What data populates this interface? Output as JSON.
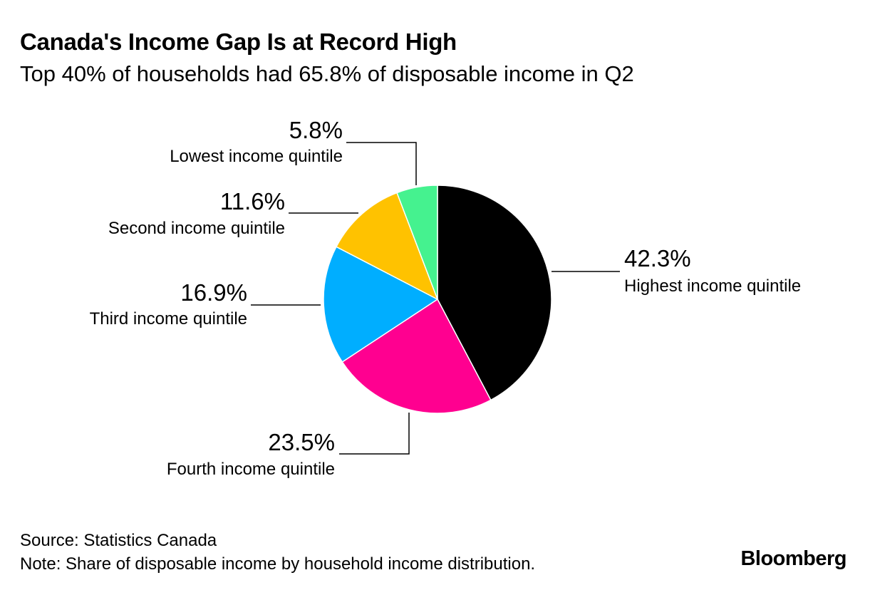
{
  "header": {
    "title": "Canada's Income Gap Is at Record High",
    "subtitle": "Top 40% of households had 65.8% of disposable income in Q2"
  },
  "footer": {
    "source": "Source: Statistics Canada",
    "note": "Note: Share of disposable income by household income distribution.",
    "logo": "Bloomberg"
  },
  "chart_data": {
    "type": "pie",
    "title": "Canada's Income Gap Is at Record High",
    "subtitle": "Top 40% of households had 65.8% of disposable income in Q2",
    "start": "12 o'clock, clockwise",
    "slices": [
      {
        "name": "Highest income quintile",
        "value": 42.3,
        "label": "42.3%",
        "color": "#000000"
      },
      {
        "name": "Fourth income quintile",
        "value": 23.5,
        "label": "23.5%",
        "color": "#FF0090"
      },
      {
        "name": "Third income quintile",
        "value": 16.9,
        "label": "16.9%",
        "color": "#00AEFF"
      },
      {
        "name": "Second income quintile",
        "value": 11.6,
        "label": "11.6%",
        "color": "#FFC200"
      },
      {
        "name": "Lowest income quintile",
        "value": 5.8,
        "label": "5.8%",
        "color": "#45F28F"
      }
    ]
  }
}
